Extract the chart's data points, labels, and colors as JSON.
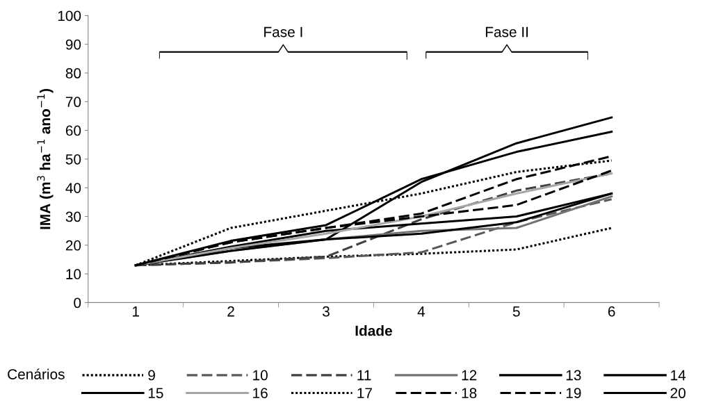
{
  "chart_data": {
    "type": "line",
    "xlabel": "Idade",
    "ylabel": "IMA (m$^{3}$ ha$^{−1}$ ano$^{−1}$)",
    "legend_title": "Cenários",
    "categories": [
      "1",
      "2",
      "3",
      "4",
      "5",
      "6"
    ],
    "ylim": [
      0,
      100
    ],
    "yticks": [
      0,
      10,
      20,
      30,
      40,
      50,
      60,
      70,
      80,
      90,
      100
    ],
    "grid": false,
    "legend": "bottom",
    "marker": "none",
    "annotations": [
      "Fase I",
      "Fase II"
    ],
    "series": [
      {
        "name": "9",
        "color": "#000000",
        "line_style": "dotted",
        "values": [
          13,
          14.5,
          16,
          17,
          18.5,
          26
        ]
      },
      {
        "name": "10",
        "color": "#595959",
        "line_style": "dashed",
        "values": [
          13,
          14,
          15.5,
          17.5,
          28,
          36
        ]
      },
      {
        "name": "11",
        "color": "#404040",
        "line_style": "dashed",
        "values": [
          13,
          14,
          16,
          29,
          39,
          45
        ]
      },
      {
        "name": "12",
        "color": "#737373",
        "line_style": "solid",
        "values": [
          13,
          18,
          22,
          25,
          26,
          37
        ]
      },
      {
        "name": "13",
        "color": "#000000",
        "line_style": "solid",
        "values": [
          13,
          18,
          22,
          24,
          28,
          38
        ]
      },
      {
        "name": "14",
        "color": "#000000",
        "line_style": "solid",
        "values": [
          13,
          19,
          22,
          42,
          55.5,
          64.5
        ]
      },
      {
        "name": "15",
        "color": "#000000",
        "line_style": "solid",
        "values": [
          13,
          19.5,
          25,
          27.5,
          30,
          38
        ]
      },
      {
        "name": "16",
        "color": "#a6a6a6",
        "line_style": "solid",
        "values": [
          13,
          19,
          24,
          30,
          38,
          45
        ]
      },
      {
        "name": "17",
        "color": "#000000",
        "line_style": "dotted",
        "values": [
          13,
          26,
          32,
          38,
          45.5,
          49.5
        ]
      },
      {
        "name": "18",
        "color": "#000000",
        "line_style": "dashed",
        "values": [
          13,
          21,
          26,
          30,
          34,
          46
        ]
      },
      {
        "name": "19",
        "color": "#000000",
        "line_style": "dashed",
        "values": [
          13,
          21,
          26,
          31,
          43,
          51
        ]
      },
      {
        "name": "20",
        "color": "#000000",
        "line_style": "solid",
        "values": [
          13,
          21.5,
          27,
          43,
          52.5,
          59.5
        ]
      }
    ]
  }
}
